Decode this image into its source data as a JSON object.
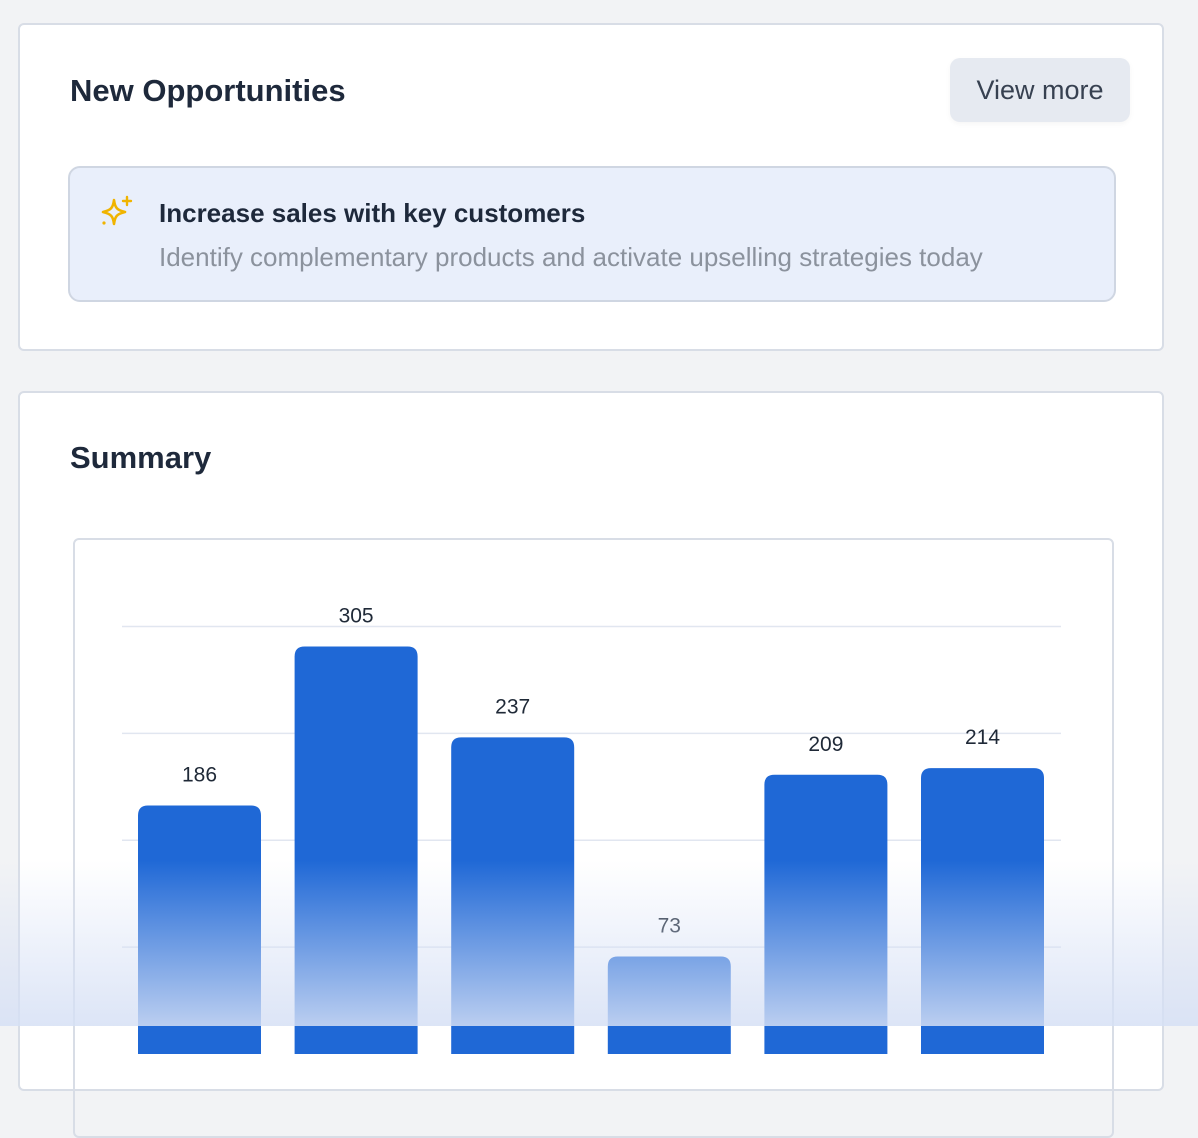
{
  "opportunities": {
    "title": "New Opportunities",
    "view_more_label": "View more",
    "banner": {
      "icon": "sparkle-icon",
      "icon_color": "#f0b400",
      "title": "Increase sales with key customers",
      "subtitle": "Identify complementary products and activate upselling strategies today"
    }
  },
  "summary": {
    "title": "Summary"
  },
  "chart_data": {
    "type": "bar",
    "values": [
      186,
      305,
      237,
      73,
      209,
      214
    ],
    "data_labels": [
      "186",
      "305",
      "237",
      "73",
      "209",
      "214"
    ],
    "gridlines": [
      80,
      160,
      240,
      320
    ],
    "grid": true,
    "bar_color": "#1f68d6"
  }
}
